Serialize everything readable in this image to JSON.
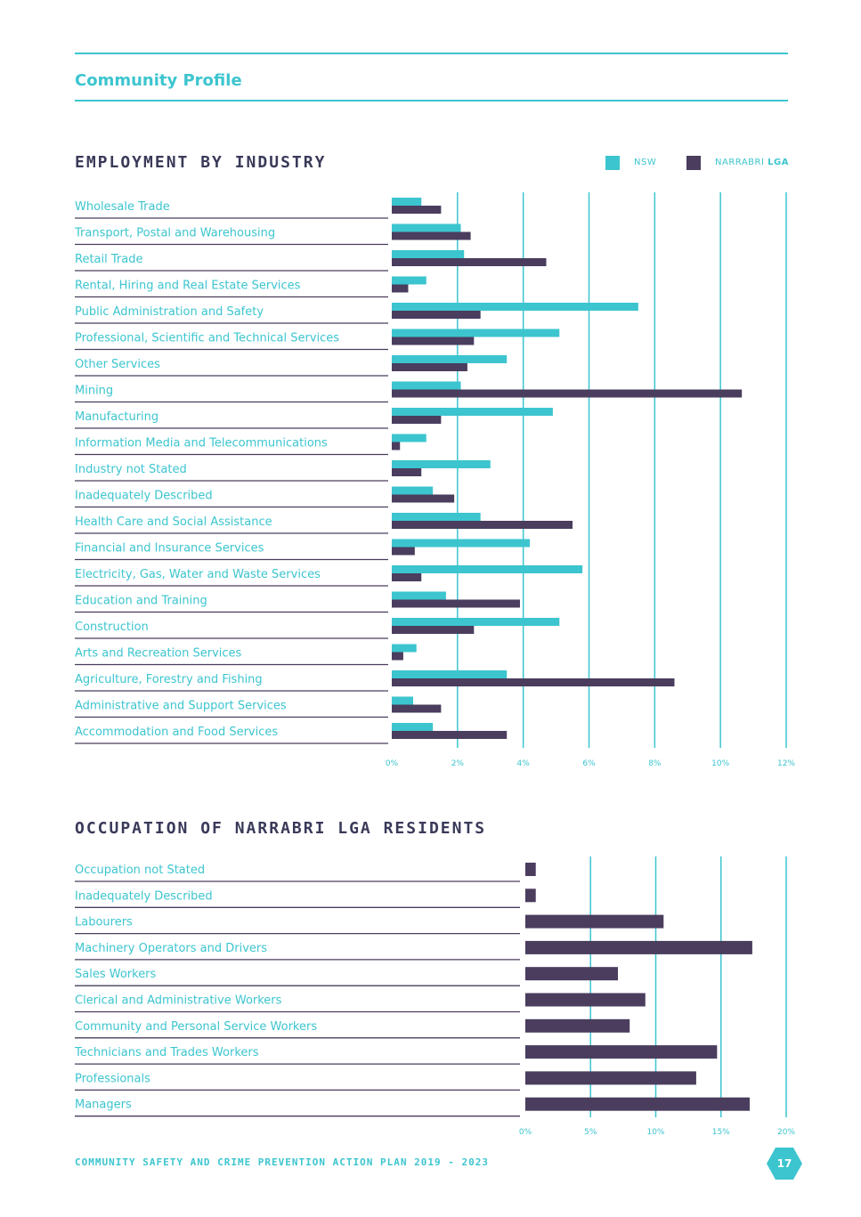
{
  "header": {
    "title": "Community Profile"
  },
  "legend": {
    "nsw_label": "NSW",
    "lga_label_part1": "NARRABRI",
    "lga_label_part2": "LGA"
  },
  "colors": {
    "nsw": "#3cc5cf",
    "lga": "#4a3d5e",
    "accent": "#3cc5cf",
    "dark": "#3a3a5a"
  },
  "chart_data": [
    {
      "type": "bar",
      "orientation": "horizontal",
      "title": "EMPLOYMENT BY INDUSTRY",
      "xlim": [
        0,
        12
      ],
      "ticks": [
        0,
        2,
        4,
        6,
        8,
        10,
        12
      ],
      "tick_labels": [
        "0%",
        "2%",
        "4%",
        "6%",
        "8%",
        "10%",
        "12%"
      ],
      "legend_position": "top-right",
      "categories": [
        "Wholesale Trade",
        "Transport, Postal and Warehousing",
        "Retail Trade",
        "Rental, Hiring and Real Estate Services",
        "Public Administration and Safety",
        "Professional, Scientific and Technical Services",
        "Other Services",
        "Mining",
        "Manufacturing",
        "Information Media and Telecommunications",
        "Industry not Stated",
        "Inadequately Described",
        "Health Care and Social Assistance",
        "Financial and Insurance Services",
        "Electricity, Gas, Water and Waste Services",
        "Education and Training",
        "Construction",
        "Arts and Recreation Services",
        "Agriculture, Forestry and Fishing",
        "Administrative and Support Services",
        "Accommodation and Food Services"
      ],
      "series": [
        {
          "name": "NSW",
          "values": [
            0.9,
            2.1,
            2.2,
            1.05,
            7.5,
            5.1,
            3.5,
            2.1,
            4.9,
            1.05,
            3.0,
            1.25,
            2.7,
            4.2,
            5.8,
            1.65,
            5.1,
            0.75,
            3.5,
            0.65,
            1.25
          ]
        },
        {
          "name": "NARRABRI LGA",
          "values": [
            1.5,
            2.4,
            4.7,
            0.5,
            2.7,
            2.5,
            2.3,
            10.65,
            1.5,
            0.25,
            0.9,
            1.9,
            5.5,
            0.7,
            0.9,
            3.9,
            2.5,
            0.35,
            8.6,
            1.5,
            3.5
          ]
        }
      ]
    },
    {
      "type": "bar",
      "orientation": "horizontal",
      "title": "OCCUPATION OF NARRABRI LGA RESIDENTS",
      "xlim": [
        0,
        20
      ],
      "ticks": [
        0,
        5,
        10,
        15,
        20
      ],
      "tick_labels": [
        "0%",
        "5%",
        "10%",
        "15%",
        "20%"
      ],
      "categories": [
        "Occupation not Stated",
        "Inadequately Described",
        "Labourers",
        "Machinery Operators and Drivers",
        "Sales Workers",
        "Clerical and Administrative Workers",
        "Community and Personal Service Workers",
        "Technicians and Trades Workers",
        "Professionals",
        "Managers"
      ],
      "series": [
        {
          "values": [
            0.8,
            0.8,
            10.6,
            17.4,
            7.1,
            9.2,
            8.0,
            14.7,
            13.1,
            17.2
          ]
        }
      ]
    }
  ],
  "footer": {
    "text": "COMMUNITY SAFETY AND CRIME PREVENTION ACTION PLAN 2019 - 2023",
    "page_number": "17"
  }
}
